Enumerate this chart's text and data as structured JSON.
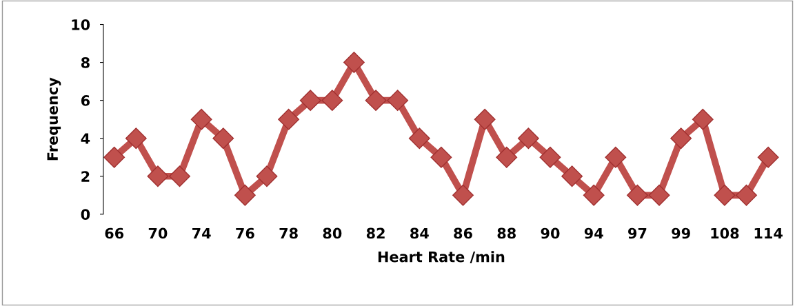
{
  "chart_data": {
    "type": "line",
    "xlabel": "Heart Rate /min",
    "ylabel": "Frequency",
    "categories": [
      "66",
      null,
      "70",
      null,
      "74",
      null,
      "76",
      null,
      "78",
      null,
      "80",
      null,
      "82",
      null,
      "84",
      null,
      "86",
      null,
      "88",
      null,
      "90",
      null,
      "94",
      null,
      "97",
      null,
      "99",
      null,
      "108",
      null,
      "114"
    ],
    "series": [
      {
        "color": "#c0504d",
        "values": [
          3,
          4,
          2,
          2,
          5,
          4,
          1,
          2,
          5,
          6,
          6,
          8,
          6,
          6,
          4,
          3,
          1,
          5,
          3,
          4,
          3,
          2,
          1,
          3,
          1,
          1,
          4,
          5,
          1,
          1,
          3
        ]
      }
    ],
    "ylim": [
      0,
      10
    ],
    "yticks": [
      0,
      2,
      4,
      6,
      8,
      10
    ],
    "grid": false,
    "legend": false,
    "marker": "diamond",
    "line_style": "solid"
  }
}
